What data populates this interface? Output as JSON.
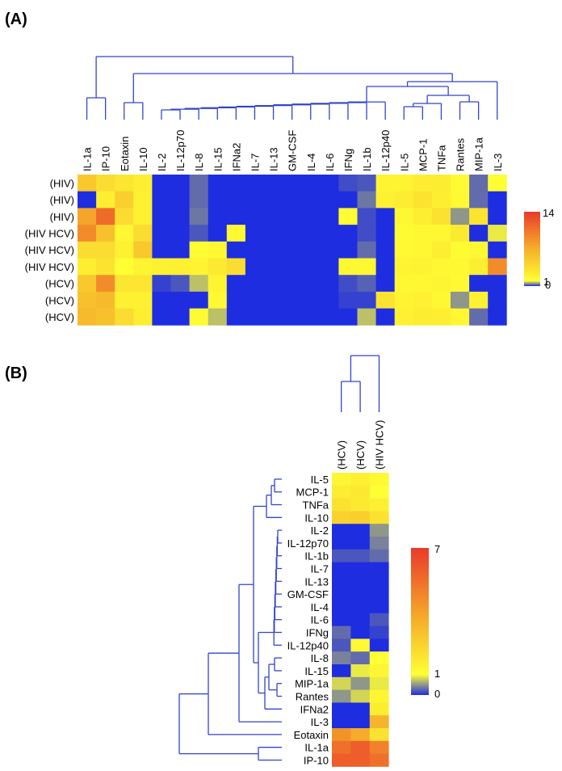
{
  "panel_a": {
    "label": "(A)",
    "colorbar": {
      "max_label": "14",
      "mid_label": "1",
      "min_label": "0"
    }
  },
  "panel_b": {
    "label": "(B)",
    "colorbar": {
      "max_label": "7",
      "mid_label": "1",
      "min_label": "0"
    }
  },
  "colors": {
    "low": "#1f2de0",
    "mid": "#ffff33",
    "high": "#ea3a2a",
    "dendrogram": "#3344cc",
    "gray_cell": "#9a9a8a"
  },
  "chart_data": [
    {
      "type": "heatmap",
      "panel": "A",
      "columns": [
        "IL-1a",
        "IP-10",
        "Eotaxin",
        "IL-10",
        "IL-2",
        "IL-12p70",
        "IL-8",
        "IL-15",
        "IFNa2",
        "IL-7",
        "IL-13",
        "GM-CSF",
        "IL-4",
        "IL-6",
        "IFNg",
        "IL-1b",
        "IL-12p40",
        "IL-5",
        "MCP-1",
        "TNFa",
        "Rantes",
        "MIP-1a",
        "IL-3"
      ],
      "rows": [
        "(HIV)",
        "(HIV)",
        "(HIV)",
        "(HIV HCV)",
        "(HIV HCV)",
        "(HIV HCV)",
        "(HCV)",
        "(HCV)",
        "(HCV)"
      ],
      "values": [
        [
          5.0,
          3.5,
          2.8,
          2.2,
          0,
          0,
          0.3,
          0,
          0,
          0,
          0,
          0,
          0,
          0,
          0.15,
          0.2,
          1.8,
          1.8,
          2.4,
          2.3,
          1.3,
          0.3,
          1.0
        ],
        [
          0,
          2.2,
          4.5,
          2.0,
          0,
          0,
          0.3,
          0,
          0,
          0,
          0,
          0,
          0,
          0,
          0,
          0.35,
          2.0,
          2.4,
          3.0,
          2.2,
          1.4,
          0.3,
          0
        ],
        [
          7.5,
          11.0,
          3.5,
          2.0,
          0,
          0,
          0.35,
          0,
          0,
          0,
          0,
          0,
          0,
          0,
          1.2,
          0.15,
          0,
          1.5,
          2.2,
          3.2,
          0.5,
          3.0,
          0
        ],
        [
          9.0,
          5.5,
          1.6,
          3.5,
          0,
          0,
          0.2,
          0,
          1.5,
          0,
          0,
          0,
          0,
          0,
          0,
          0.15,
          0,
          1.3,
          1.5,
          1.6,
          2.5,
          0,
          0.9
        ],
        [
          3.5,
          3.5,
          2.0,
          5.0,
          0,
          0,
          1.2,
          1.5,
          0,
          0,
          0,
          0,
          0,
          0,
          0,
          0.3,
          0,
          1.4,
          1.6,
          2.2,
          1.3,
          1.5,
          0
        ],
        [
          2.2,
          3.0,
          1.0,
          1.8,
          2.0,
          2.0,
          1.8,
          2.6,
          3.5,
          0,
          0,
          0,
          0,
          0,
          1.5,
          1.5,
          0,
          1.8,
          1.9,
          1.6,
          1.5,
          2.2,
          9.0
        ],
        [
          5.0,
          9.0,
          2.8,
          2.8,
          0.1,
          0.2,
          0.7,
          1.8,
          0,
          0,
          0,
          0,
          0,
          0,
          0.15,
          0.25,
          0,
          1.5,
          1.6,
          1.7,
          1.4,
          0,
          0
        ],
        [
          5.5,
          6.0,
          2.0,
          2.0,
          0,
          0,
          0,
          1.4,
          0,
          0,
          0,
          0,
          0,
          0,
          0.1,
          0.1,
          3.0,
          1.8,
          2.0,
          1.5,
          0.5,
          2.0,
          0
        ],
        [
          6.0,
          5.5,
          3.5,
          2.2,
          0,
          0,
          1.3,
          0.7,
          0,
          0,
          0,
          0,
          0,
          0,
          0,
          0.7,
          0,
          2.0,
          2.3,
          2.2,
          1.6,
          0.3,
          0
        ]
      ],
      "color_scale": {
        "min": 0,
        "mid": 1,
        "max": 14
      }
    },
    {
      "type": "heatmap",
      "panel": "B",
      "columns": [
        "(HCV)",
        "(HCV)",
        "(HIV HCV)"
      ],
      "rows": [
        "IL-5",
        "MCP-1",
        "TNFa",
        "IL-10",
        "IL-2",
        "IL-12p70",
        "IL-1b",
        "IL-7",
        "IL-13",
        "GM-CSF",
        "IL-4",
        "IL-6",
        "IFNg",
        "IL-12p40",
        "IL-8",
        "IL-15",
        "MIP-1a",
        "Rantes",
        "IFNa2",
        "IL-3",
        "Eotaxin",
        "IL-1a",
        "IP-10"
      ],
      "values": [
        [
          1.3,
          1.5,
          1.2
        ],
        [
          1.6,
          1.8,
          1.0
        ],
        [
          2.0,
          1.7,
          1.5
        ],
        [
          2.5,
          2.6,
          2.0
        ],
        [
          0,
          0,
          0.5
        ],
        [
          0,
          0,
          0.4
        ],
        [
          0.2,
          0.2,
          0.3
        ],
        [
          0,
          0,
          0
        ],
        [
          0,
          0,
          0
        ],
        [
          0,
          0,
          0
        ],
        [
          0,
          0,
          0
        ],
        [
          0,
          0,
          0.2
        ],
        [
          0.3,
          0,
          0.1
        ],
        [
          0.2,
          1.2,
          0
        ],
        [
          0.4,
          0.3,
          1.0
        ],
        [
          0,
          0.9,
          1.3
        ],
        [
          0.8,
          0.5,
          0.9
        ],
        [
          0.5,
          0.8,
          1.3
        ],
        [
          0,
          0,
          1.6
        ],
        [
          0,
          0,
          3.5
        ],
        [
          4.5,
          3.8,
          2.0
        ],
        [
          5.5,
          6.0,
          5.0
        ],
        [
          6.0,
          6.0,
          5.5
        ]
      ],
      "color_scale": {
        "min": 0,
        "mid": 1,
        "max": 7
      }
    }
  ]
}
